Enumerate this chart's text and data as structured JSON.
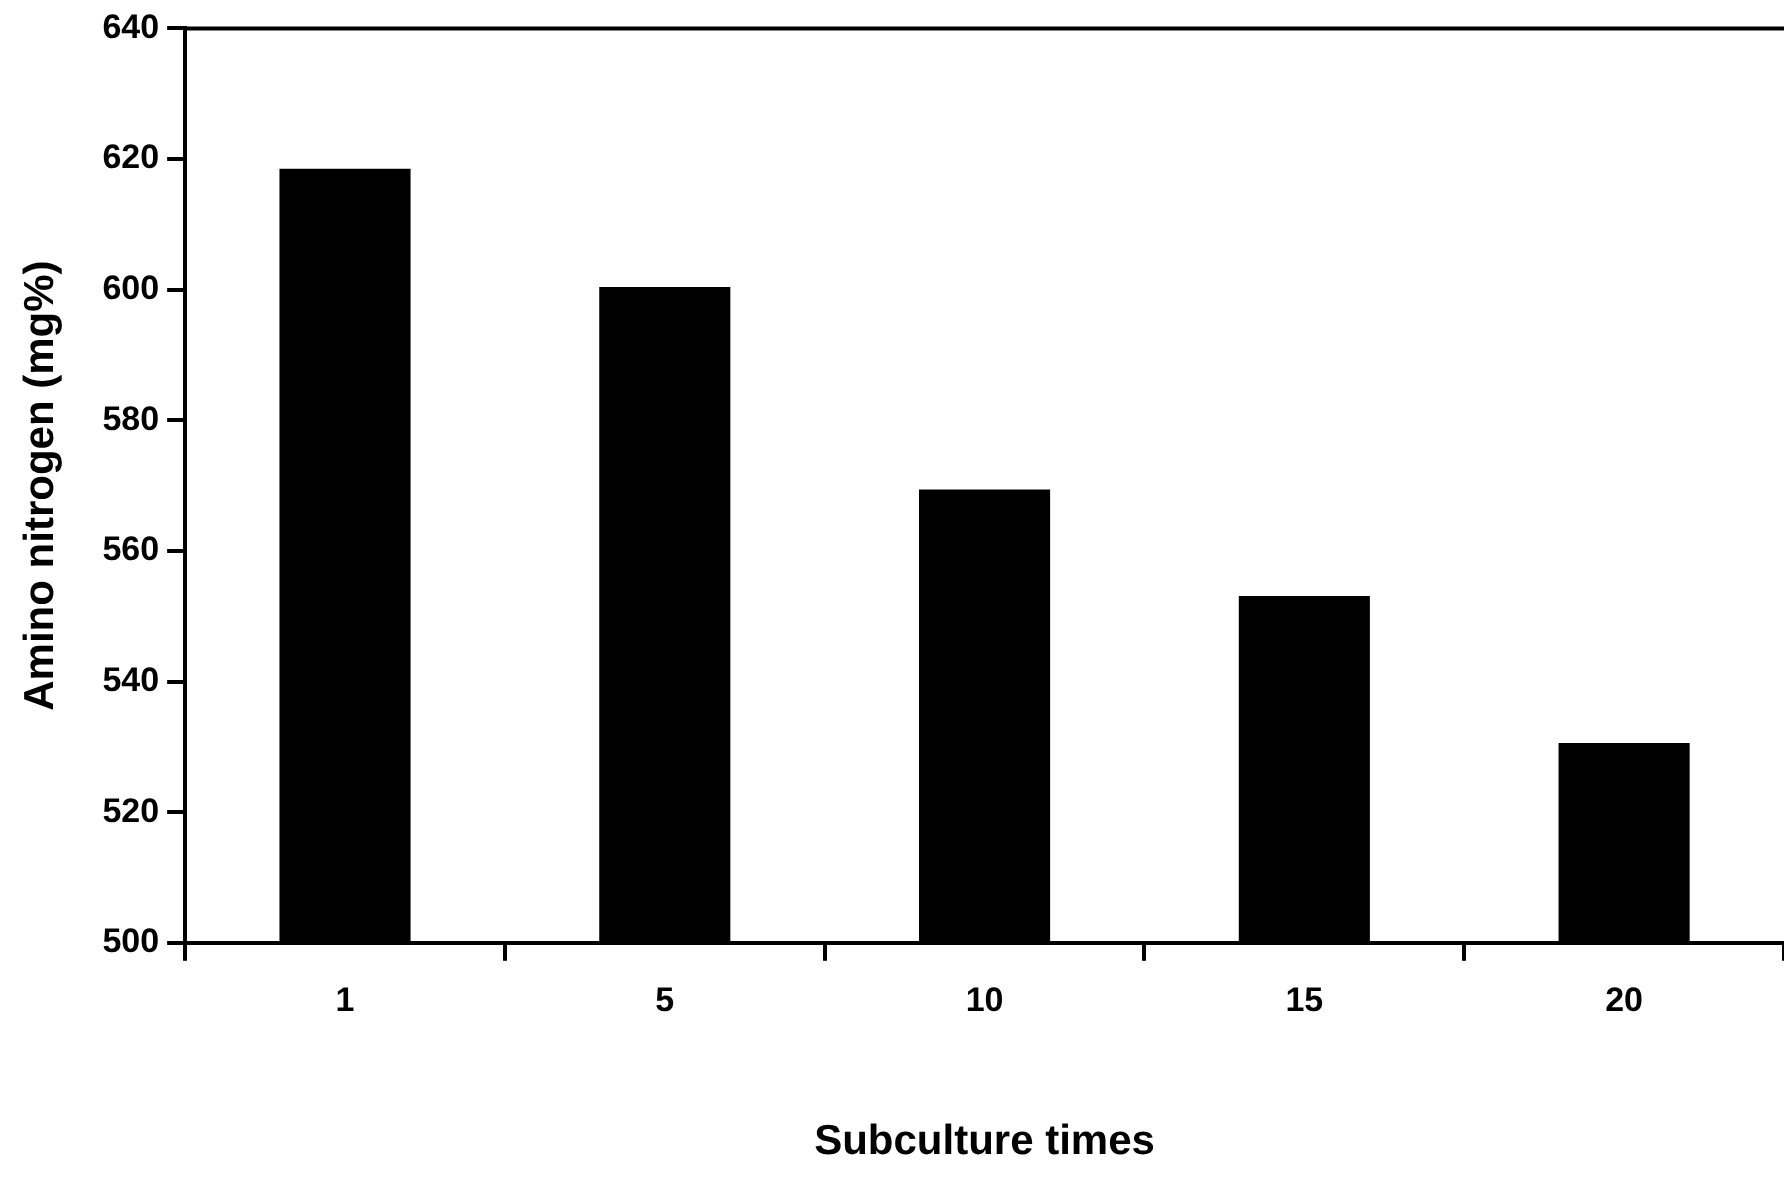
{
  "chart_data": {
    "type": "bar",
    "xlabel": "Subculture times",
    "ylabel": "Amino nitrogen (mg%)",
    "categories": [
      "1",
      "5",
      "10",
      "15",
      "20"
    ],
    "values": [
      618.5,
      600.4,
      569.4,
      553.1,
      530.6
    ],
    "color": "#000000",
    "ylim": [
      500,
      640
    ],
    "yticks": [
      500,
      520,
      540,
      560,
      580,
      600,
      620,
      640
    ],
    "grid": false
  }
}
